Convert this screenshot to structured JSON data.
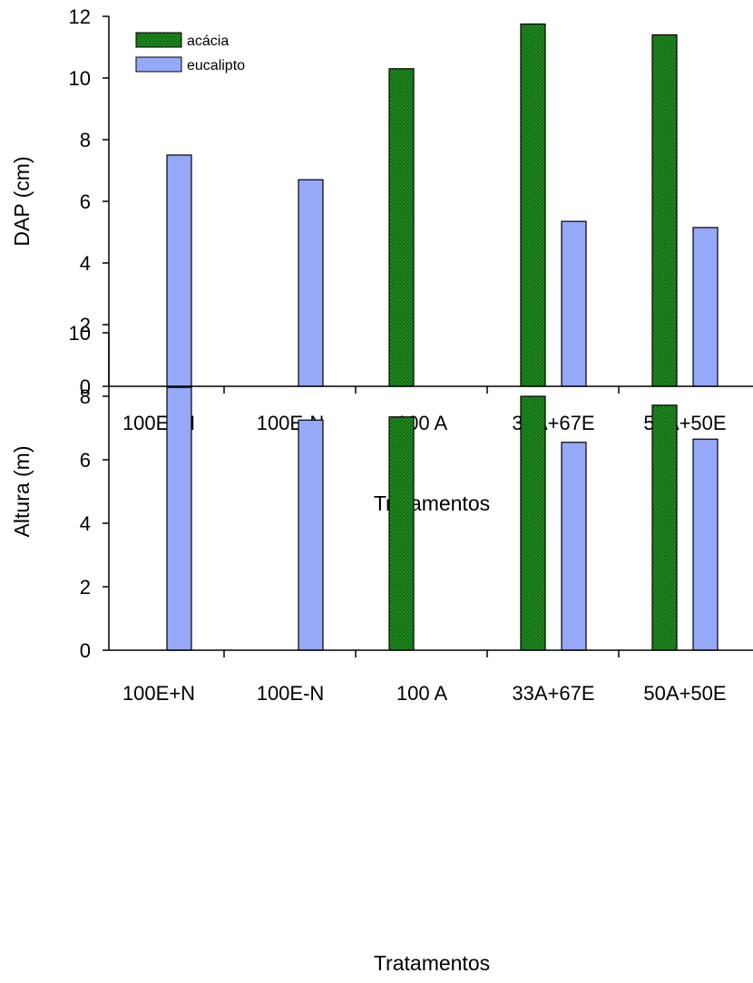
{
  "chart_data": [
    {
      "type": "bar",
      "ylabel": "DAP (cm)",
      "xlabel": "Tratamentos",
      "categories": [
        "100E+N",
        "100E-N",
        "100 A",
        "33A+67E",
        "50A+50E"
      ],
      "ylim": [
        0,
        12
      ],
      "yticks": [
        0,
        2,
        4,
        6,
        8,
        10,
        12
      ],
      "legend": "top-left",
      "series": [
        {
          "name": "acácia",
          "color": "#1a7a1a",
          "pattern": "dotted",
          "values": [
            null,
            null,
            10.3,
            11.75,
            11.4
          ]
        },
        {
          "name": "eucalipto",
          "color": "#96a8f8",
          "values": [
            7.5,
            6.7,
            null,
            5.35,
            5.15
          ]
        }
      ]
    },
    {
      "type": "bar",
      "ylabel": "Altura (m)",
      "xlabel": "Tratamentos",
      "categories": [
        "100E+N",
        "100E-N",
        "100 A",
        "33A+67E",
        "50A+50E"
      ],
      "ylim": [
        0,
        10
      ],
      "yticks": [
        0,
        2,
        4,
        6,
        8,
        10
      ],
      "series": [
        {
          "name": "acácia",
          "color": "#1a7a1a",
          "pattern": "dotted",
          "values": [
            null,
            null,
            7.35,
            8.0,
            7.72
          ]
        },
        {
          "name": "eucalipto",
          "color": "#96a8f8",
          "values": [
            8.28,
            7.25,
            null,
            6.55,
            6.65
          ]
        }
      ]
    }
  ]
}
